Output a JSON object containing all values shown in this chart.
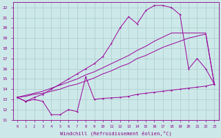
{
  "bg_color": "#cde8e8",
  "grid_color": "#aacccc",
  "line_color": "#990099",
  "xlabel": "Windchill (Refroidissement éolien,°C)",
  "xlim": [
    -0.5,
    23.5
  ],
  "ylim": [
    11,
    22.5
  ],
  "yticks": [
    11,
    12,
    13,
    14,
    15,
    16,
    17,
    18,
    19,
    20,
    21,
    22
  ],
  "xticks": [
    0,
    1,
    2,
    3,
    4,
    5,
    6,
    7,
    8,
    9,
    10,
    11,
    12,
    13,
    14,
    15,
    16,
    17,
    18,
    19,
    20,
    21,
    22,
    23
  ],
  "line_zigzag_x": [
    0,
    1,
    2,
    3,
    4,
    5,
    6,
    7,
    8,
    9,
    10,
    11,
    12,
    13,
    14,
    15,
    16,
    17,
    18,
    19,
    20,
    21,
    22,
    23
  ],
  "line_zigzag_y": [
    13.2,
    12.8,
    13.0,
    12.8,
    11.5,
    11.5,
    12.0,
    11.8,
    15.2,
    13.0,
    13.1,
    13.15,
    13.2,
    13.3,
    13.5,
    13.6,
    13.7,
    13.8,
    13.9,
    14.0,
    14.1,
    14.2,
    14.3,
    14.5
  ],
  "line_low_x": [
    0,
    1,
    2,
    3,
    4,
    5,
    6,
    7,
    8,
    9,
    10,
    11,
    12,
    13,
    14,
    15,
    16,
    17,
    18,
    19,
    20,
    21,
    22,
    23
  ],
  "line_low_y": [
    13.2,
    13.3,
    13.5,
    13.6,
    13.8,
    14.0,
    14.3,
    14.5,
    14.8,
    15.1,
    15.5,
    15.8,
    16.2,
    16.5,
    17.0,
    17.3,
    17.7,
    18.1,
    18.4,
    18.7,
    19.0,
    19.2,
    19.4,
    14.5
  ],
  "line_mid_x": [
    0,
    1,
    2,
    3,
    4,
    5,
    6,
    7,
    8,
    9,
    10,
    11,
    12,
    13,
    14,
    15,
    16,
    17,
    18,
    19,
    20,
    21,
    22,
    23
  ],
  "line_mid_y": [
    13.2,
    13.4,
    13.6,
    13.8,
    14.1,
    14.4,
    14.7,
    15.0,
    15.4,
    15.7,
    16.1,
    16.5,
    16.9,
    17.3,
    17.8,
    18.2,
    18.7,
    19.1,
    19.5,
    19.5,
    19.5,
    19.5,
    19.5,
    14.5
  ],
  "line_top_x": [
    0,
    1,
    2,
    3,
    4,
    5,
    6,
    7,
    8,
    9,
    10,
    11,
    12,
    13,
    14,
    15,
    16,
    17,
    18,
    19,
    20,
    21,
    22,
    23
  ],
  "line_top_y": [
    13.2,
    12.8,
    13.2,
    13.5,
    14.0,
    14.5,
    15.0,
    15.5,
    16.0,
    16.5,
    17.2,
    18.5,
    20.0,
    21.1,
    20.4,
    21.7,
    22.2,
    22.2,
    22.0,
    21.3,
    16.0,
    17.0,
    16.0,
    14.5
  ]
}
